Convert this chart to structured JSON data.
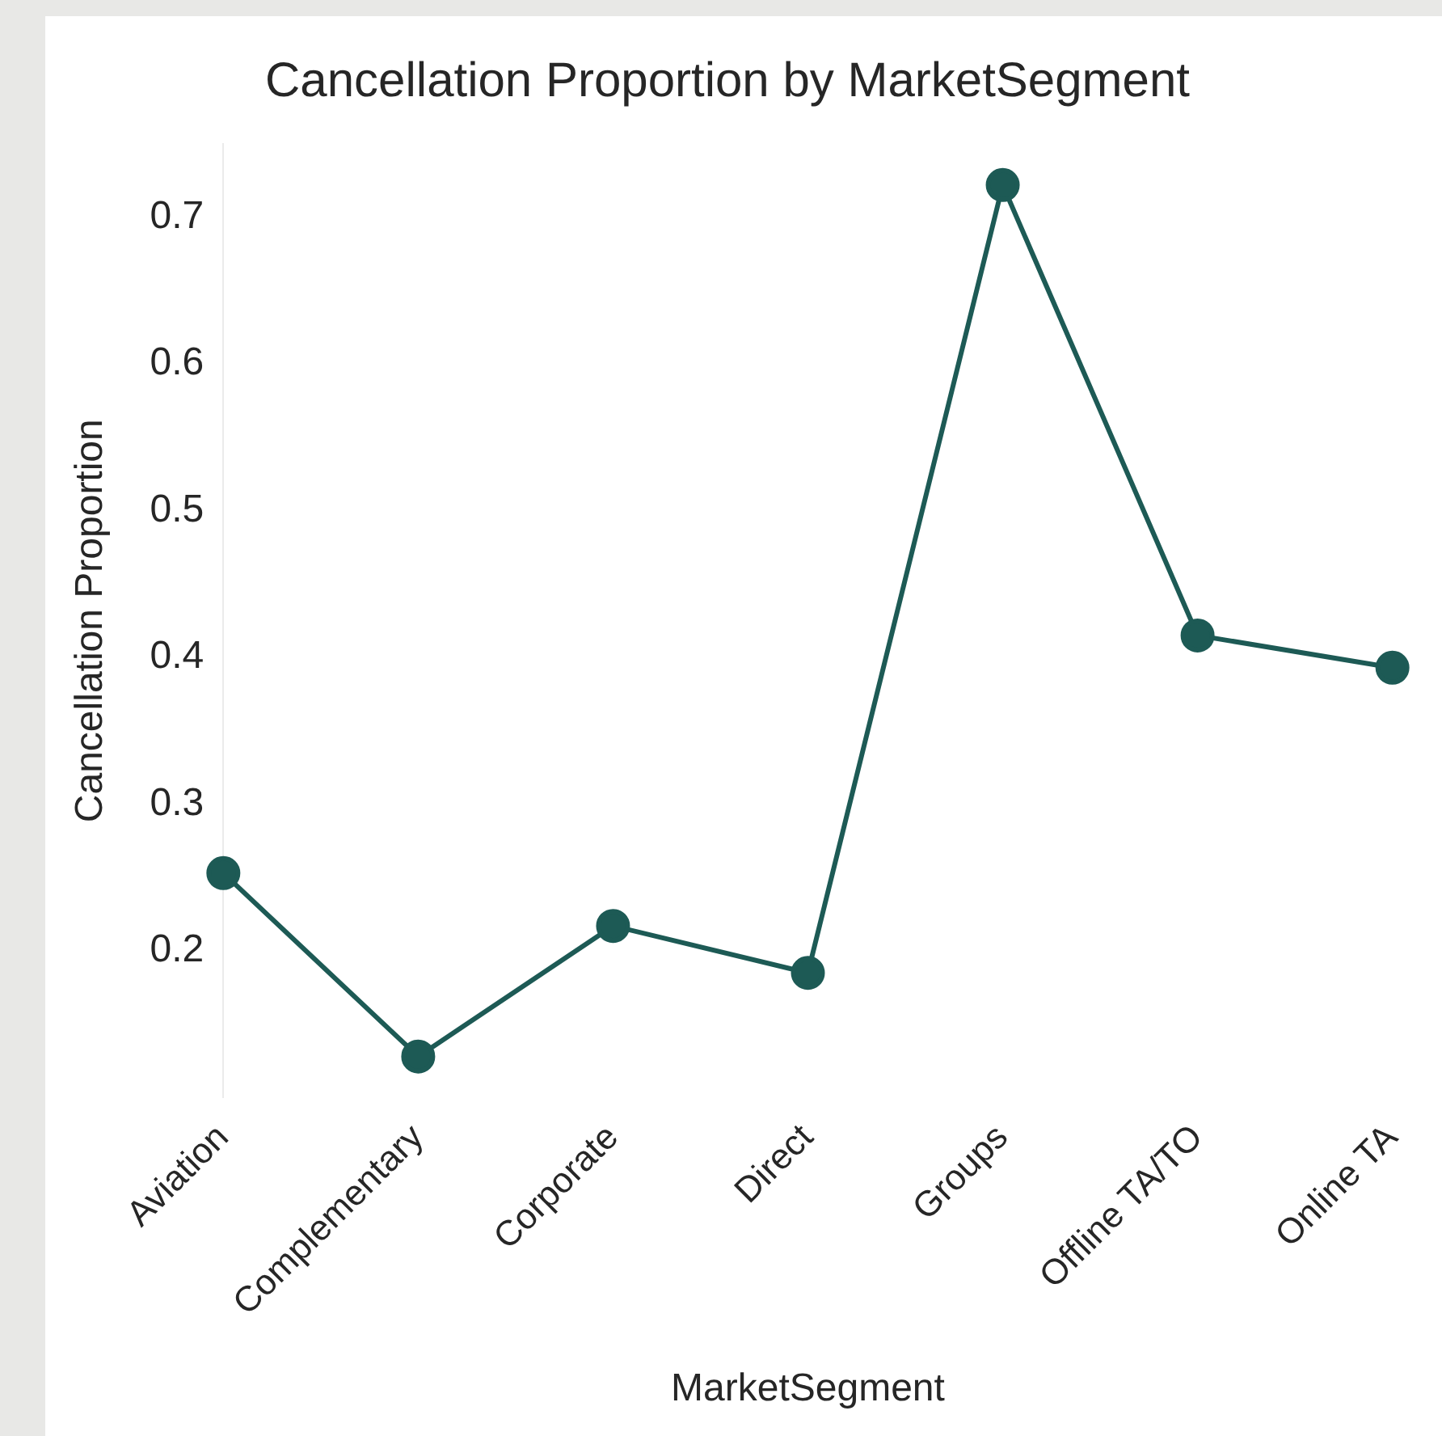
{
  "chart_data": {
    "type": "line",
    "title": "Cancellation Proportion by MarketSegment",
    "xlabel": "MarketSegment",
    "ylabel": "Cancellation Proportion",
    "categories": [
      "Aviation",
      "Complementary",
      "Corporate",
      "Direct",
      "Groups",
      "Offline TA/TO",
      "Online TA"
    ],
    "series": [
      {
        "color": "#1d5a55",
        "values": [
          0.253,
          0.128,
          0.217,
          0.185,
          0.722,
          0.415,
          0.393
        ]
      }
    ],
    "ylim": [
      0.1,
      0.75
    ],
    "yticks": [
      0.2,
      0.3,
      0.4,
      0.5,
      0.6,
      0.7
    ],
    "grid": false,
    "legend": false,
    "marker": "circle",
    "line_style": "solid"
  }
}
